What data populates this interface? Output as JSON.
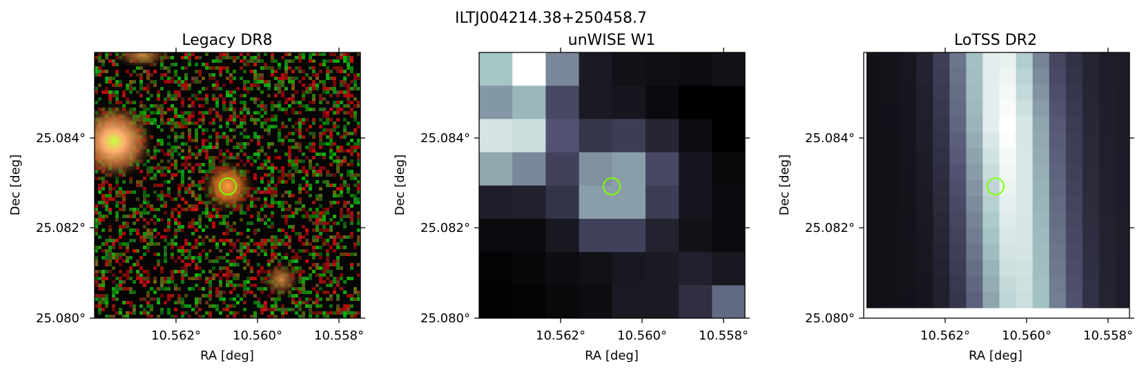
{
  "figure": {
    "suptitle": "ILTJ004214.38+250458.7"
  },
  "panels": [
    {
      "title": "Legacy DR8",
      "xlabel": "RA [deg]",
      "ylabel": "Dec [deg]",
      "xticks": [
        "10.562°",
        "10.560°",
        "10.558°"
      ],
      "yticks": [
        "25.084°",
        "25.082°",
        "25.080°"
      ]
    },
    {
      "title": "unWISE W1",
      "xlabel": "RA [deg]",
      "ylabel": "Dec [deg]",
      "xticks": [
        "10.562°",
        "10.560°",
        "10.558°"
      ],
      "yticks": [
        "25.084°",
        "25.082°",
        "25.080°"
      ]
    },
    {
      "title": "LoTSS DR2",
      "xlabel": "RA [deg]",
      "ylabel": "Dec [deg]",
      "xticks": [
        "10.562°",
        "10.560°",
        "10.558°"
      ],
      "yticks": [
        "25.084°",
        "25.082°",
        "25.080°"
      ]
    }
  ],
  "colors": {
    "marker": "#7fff00"
  }
}
